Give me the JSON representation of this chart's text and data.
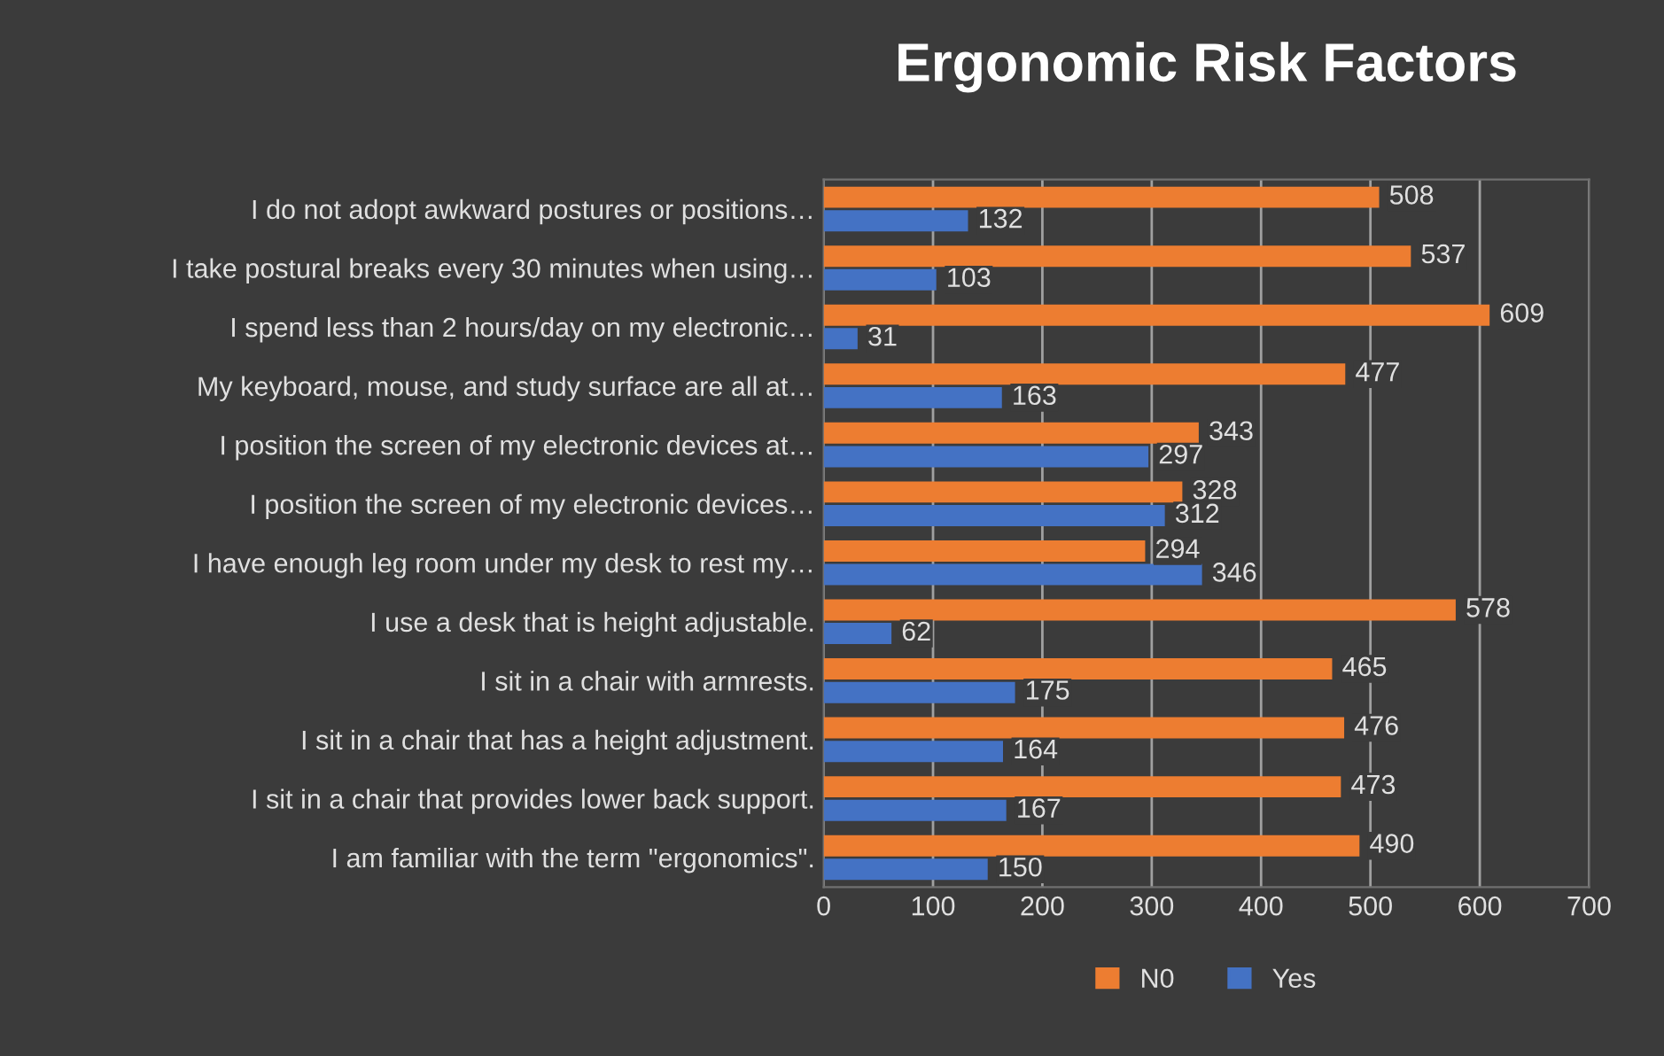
{
  "chart_data": {
    "type": "bar",
    "orientation": "horizontal",
    "title": "Ergonomic Risk Factors",
    "categories": [
      "I do not adopt awkward postures or positions…",
      "I take postural breaks every 30 minutes when using…",
      "I spend less than 2 hours/day on my electronic…",
      "My keyboard, mouse, and study surface are all at…",
      "I position the screen of my electronic devices at…",
      "I position the screen of my electronic devices…",
      "I have enough leg room under my desk to rest my…",
      "I use a desk that is height adjustable.",
      "I sit in a chair with armrests.",
      "I sit in a chair that has a height adjustment.",
      "I sit in a chair that provides lower back support.",
      "I am familiar with the term \"ergonomics\"."
    ],
    "series": [
      {
        "name": "N0",
        "color": "#ed7d31",
        "values": [
          508,
          537,
          609,
          477,
          343,
          328,
          294,
          578,
          465,
          476,
          473,
          490
        ]
      },
      {
        "name": "Yes",
        "color": "#4472c4",
        "values": [
          132,
          103,
          31,
          163,
          297,
          312,
          346,
          62,
          175,
          164,
          167,
          150
        ]
      }
    ],
    "xlim": [
      0,
      700
    ],
    "xticks": [
      0,
      100,
      200,
      300,
      400,
      500,
      600,
      700
    ],
    "grid": "x",
    "legend": "bottom",
    "data_labels": true
  }
}
